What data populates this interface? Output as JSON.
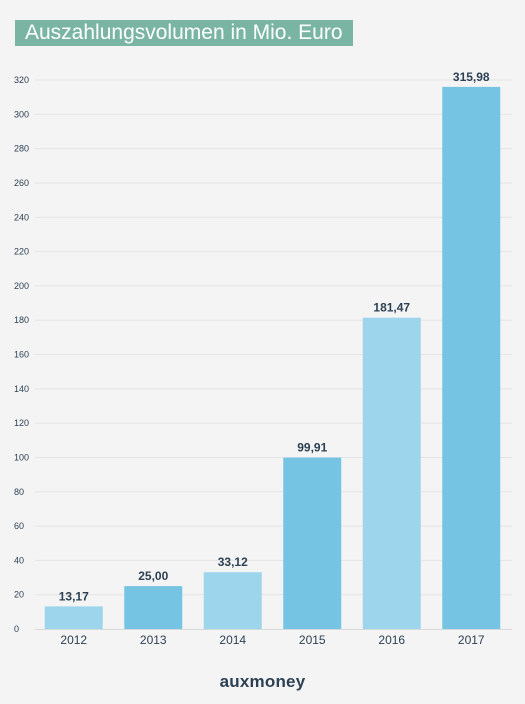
{
  "title": "Auszahlungsvolumen in Mio. Euro",
  "brand": "auxmoney",
  "colors": {
    "background": "#f4f4f4",
    "title_bg": "#7ab5a4",
    "bar_light": "#9dd5ec",
    "bar_dark": "#75c4e4",
    "grid": "#e4e4e4",
    "text_dark": "#2d4154"
  },
  "chart_data": {
    "type": "bar",
    "title": "Auszahlungsvolumen in Mio. Euro",
    "xlabel": "",
    "ylabel": "",
    "categories": [
      "2012",
      "2013",
      "2014",
      "2015",
      "2016",
      "2017"
    ],
    "values": [
      13.17,
      25.0,
      33.12,
      99.91,
      181.47,
      315.98
    ],
    "value_labels": [
      "13,17",
      "25,00",
      "33,12",
      "99,91",
      "181,47",
      "315,98"
    ],
    "ylim": [
      0,
      320
    ],
    "yticks": [
      0,
      20,
      40,
      60,
      80,
      100,
      120,
      140,
      160,
      180,
      200,
      220,
      240,
      260,
      280,
      300,
      320
    ],
    "grid": true,
    "legend": "none",
    "bar_colors": [
      "#9dd5ec",
      "#75c4e4",
      "#9dd5ec",
      "#75c4e4",
      "#9dd5ec",
      "#75c4e4"
    ]
  }
}
